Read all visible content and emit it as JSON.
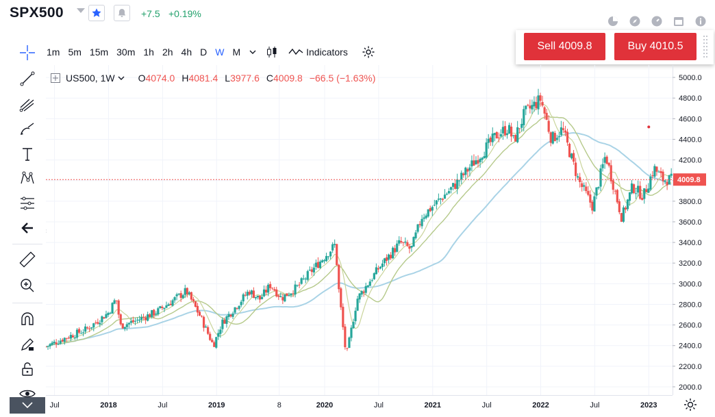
{
  "header": {
    "symbol": "SPX500",
    "change_abs": "+7.5",
    "change_pct": "+0.19%"
  },
  "trade": {
    "sell_label": "Sell 4009.8",
    "buy_label": "Buy 4010.5"
  },
  "toolbar": {
    "timeframes": [
      "1m",
      "5m",
      "15m",
      "30m",
      "1h",
      "2h",
      "4h",
      "D",
      "W",
      "M"
    ],
    "active_timeframe": "W",
    "indicators_label": "Indicators"
  },
  "legend": {
    "instrument": "US500, 1W",
    "open_label": "O",
    "open": "4074.0",
    "high_label": "H",
    "high": "4081.4",
    "low_label": "L",
    "low": "3977.6",
    "close_label": "C",
    "close": "4009.8",
    "change": "−66.5 (−1.63%)"
  },
  "price_tag": "4009.8",
  "colors": {
    "up": "#26a69a",
    "down": "#ef5350",
    "accent": "#2962ff",
    "sell": "#e0323a",
    "buy": "#e0323a",
    "ma_fast": "#c9d49a",
    "ma_mid": "#b5c98a",
    "ma_slow": "#a9d3e6"
  },
  "chart_data": {
    "type": "candlestick",
    "title": "US500, 1W",
    "y_ticks": [
      2000,
      2200,
      2400,
      2600,
      2800,
      3000,
      3200,
      3400,
      3600,
      3800,
      4000,
      4200,
      4400,
      4600,
      4800,
      5000
    ],
    "y_tick_labels": [
      "2000.0",
      "2200.0",
      "2400.0",
      "2600.0",
      "2800.0",
      "3000.0",
      "3200.0",
      "3400.0",
      "3600.0",
      "3800.0",
      "4000.0",
      "4200.0",
      "4400.0",
      "4600.0",
      "4800.0",
      "5000.0"
    ],
    "ylim": [
      1920,
      5120
    ],
    "x_range": [
      2017.42,
      2023.22
    ],
    "x_ticks": [
      {
        "t": 2017.5,
        "label": "Jul"
      },
      {
        "t": 2018.0,
        "label": "2018"
      },
      {
        "t": 2018.5,
        "label": "Jul"
      },
      {
        "t": 2019.0,
        "label": "2019"
      },
      {
        "t": 2019.58,
        "label": "8"
      },
      {
        "t": 2020.0,
        "label": "2020"
      },
      {
        "t": 2020.5,
        "label": "Jul"
      },
      {
        "t": 2021.0,
        "label": "2021"
      },
      {
        "t": 2021.5,
        "label": "Jul"
      },
      {
        "t": 2022.0,
        "label": "2022"
      },
      {
        "t": 2022.5,
        "label": "Jul"
      },
      {
        "t": 2023.0,
        "label": "2023"
      }
    ],
    "anchors": [
      [
        2017.42,
        2390
      ],
      [
        2017.6,
        2475
      ],
      [
        2017.8,
        2560
      ],
      [
        2018.0,
        2720
      ],
      [
        2018.07,
        2860
      ],
      [
        2018.11,
        2590
      ],
      [
        2018.25,
        2640
      ],
      [
        2018.45,
        2730
      ],
      [
        2018.72,
        2930
      ],
      [
        2018.85,
        2680
      ],
      [
        2018.97,
        2400
      ],
      [
        2019.05,
        2620
      ],
      [
        2019.3,
        2930
      ],
      [
        2019.4,
        2850
      ],
      [
        2019.5,
        2990
      ],
      [
        2019.6,
        2860
      ],
      [
        2019.75,
        2970
      ],
      [
        2019.9,
        3150
      ],
      [
        2020.1,
        3380
      ],
      [
        2020.13,
        2950
      ],
      [
        2020.2,
        2290
      ],
      [
        2020.3,
        2850
      ],
      [
        2020.5,
        3150
      ],
      [
        2020.7,
        3400
      ],
      [
        2020.8,
        3330
      ],
      [
        2020.9,
        3650
      ],
      [
        2021.0,
        3750
      ],
      [
        2021.2,
        3950
      ],
      [
        2021.4,
        4200
      ],
      [
        2021.6,
        4450
      ],
      [
        2021.7,
        4510
      ],
      [
        2021.75,
        4380
      ],
      [
        2021.85,
        4650
      ],
      [
        2022.0,
        4790
      ],
      [
        2022.1,
        4400
      ],
      [
        2022.2,
        4500
      ],
      [
        2022.35,
        4000
      ],
      [
        2022.48,
        3750
      ],
      [
        2022.6,
        4250
      ],
      [
        2022.75,
        3640
      ],
      [
        2022.85,
        3940
      ],
      [
        2022.95,
        3850
      ],
      [
        2023.05,
        4120
      ],
      [
        2023.13,
        4010
      ]
    ],
    "last_price": 4009.8,
    "marker_point": [
      2023.0,
      4520
    ]
  }
}
